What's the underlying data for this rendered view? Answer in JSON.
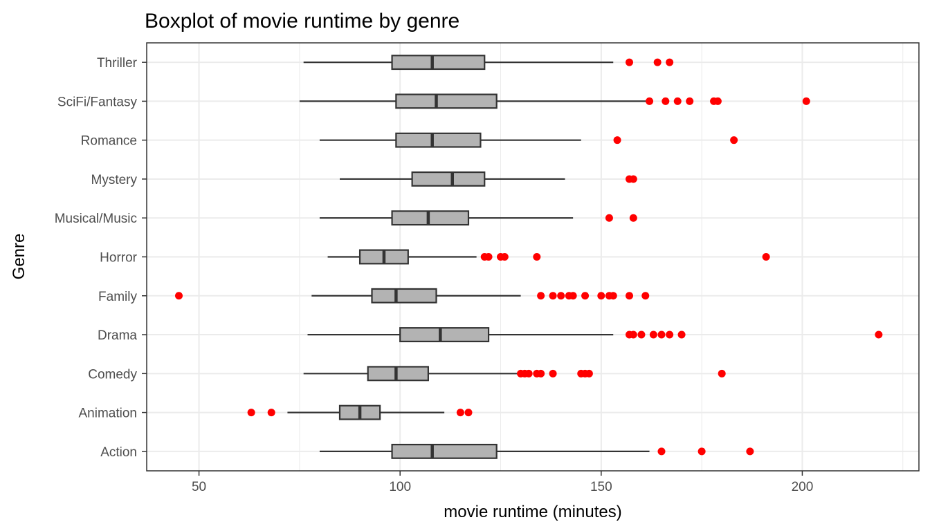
{
  "chart_data": {
    "type": "boxplot",
    "orientation": "horizontal",
    "title": "Boxplot of movie runtime by genre",
    "xlabel": "movie runtime (minutes)",
    "ylabel": "Genre",
    "xlim": [
      37,
      229
    ],
    "xticks": [
      50,
      100,
      150,
      200
    ],
    "xtick_labels": [
      "50",
      "100",
      "150",
      "200"
    ],
    "grid": true,
    "colors": {
      "box_fill": "#b3b3b3",
      "box_stroke": "#333333",
      "outlier": "#ff0000",
      "grid": "#ebebeb"
    },
    "categories": [
      "Action",
      "Animation",
      "Comedy",
      "Drama",
      "Family",
      "Horror",
      "Musical/Music",
      "Mystery",
      "Romance",
      "SciFi/Fantasy",
      "Thriller"
    ],
    "boxes": [
      {
        "category": "Action",
        "whisker_low": 80,
        "q1": 98,
        "median": 108,
        "q3": 124,
        "whisker_high": 162,
        "outliers": [
          165,
          175,
          187
        ]
      },
      {
        "category": "Animation",
        "whisker_low": 72,
        "q1": 85,
        "median": 90,
        "q3": 95,
        "whisker_high": 111,
        "outliers": [
          63,
          68,
          115,
          117
        ]
      },
      {
        "category": "Comedy",
        "whisker_low": 76,
        "q1": 92,
        "median": 99,
        "q3": 107,
        "whisker_high": 130,
        "outliers": [
          130,
          131,
          132,
          134,
          135,
          138,
          145,
          146,
          147,
          180
        ]
      },
      {
        "category": "Drama",
        "whisker_low": 77,
        "q1": 100,
        "median": 110,
        "q3": 122,
        "whisker_high": 153,
        "outliers": [
          157,
          158,
          160,
          163,
          165,
          167,
          170,
          219
        ]
      },
      {
        "category": "Family",
        "whisker_low": 78,
        "q1": 93,
        "median": 99,
        "q3": 109,
        "whisker_high": 130,
        "outliers": [
          45,
          135,
          138,
          140,
          142,
          143,
          146,
          150,
          152,
          153,
          157,
          161
        ]
      },
      {
        "category": "Horror",
        "whisker_low": 82,
        "q1": 90,
        "median": 96,
        "q3": 102,
        "whisker_high": 119,
        "outliers": [
          121,
          122,
          125,
          126,
          134,
          191
        ]
      },
      {
        "category": "Musical/Music",
        "whisker_low": 80,
        "q1": 98,
        "median": 107,
        "q3": 117,
        "whisker_high": 143,
        "outliers": [
          152,
          158
        ]
      },
      {
        "category": "Mystery",
        "whisker_low": 85,
        "q1": 103,
        "median": 113,
        "q3": 121,
        "whisker_high": 141,
        "outliers": [
          157,
          158
        ]
      },
      {
        "category": "Romance",
        "whisker_low": 80,
        "q1": 99,
        "median": 108,
        "q3": 120,
        "whisker_high": 145,
        "outliers": [
          154,
          183
        ]
      },
      {
        "category": "SciFi/Fantasy",
        "whisker_low": 75,
        "q1": 99,
        "median": 109,
        "q3": 124,
        "whisker_high": 162,
        "outliers": [
          162,
          166,
          169,
          172,
          178,
          179,
          201
        ]
      },
      {
        "category": "Thriller",
        "whisker_low": 76,
        "q1": 98,
        "median": 108,
        "q3": 121,
        "whisker_high": 153,
        "outliers": [
          157,
          164,
          167
        ]
      }
    ]
  }
}
